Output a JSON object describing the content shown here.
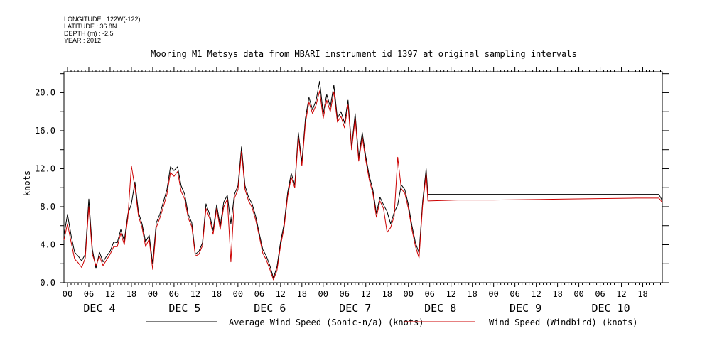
{
  "meta": {
    "longitude": "LONGITUDE : 122W(-122)",
    "latitude": "LATITUDE : 36.8N",
    "depth": "DEPTH (m) : -2.5",
    "year": "YEAR : 2012"
  },
  "chart_data": {
    "type": "line",
    "title": "Mooring M1 Metsys data from MBARI instrument id 1397 at original sampling intervals",
    "ylabel": "knots",
    "xlabel": "",
    "ylim": [
      0,
      20
    ],
    "yticks": [
      0.0,
      4.0,
      8.0,
      12.0,
      16.0,
      20.0
    ],
    "ytick_labels": [
      "0.0",
      "4.0",
      "8.0",
      "12.0",
      "16.0",
      "20.0"
    ],
    "xlim_hours": [
      -1,
      167.5
    ],
    "hour_ticks": [
      "00",
      "06",
      "12",
      "18"
    ],
    "days": [
      "DEC 4",
      "DEC 5",
      "DEC 6",
      "DEC 7",
      "DEC 8",
      "DEC 9",
      "DEC 10"
    ],
    "legend_position": "bottom",
    "grid": false,
    "series": [
      {
        "name": "Average Wind Speed (Sonic-n/a) (knots)",
        "color": "#000000",
        "points": [
          [
            -1,
            5.0
          ],
          [
            0,
            7.2
          ],
          [
            1,
            5.0
          ],
          [
            2,
            3.2
          ],
          [
            3,
            2.8
          ],
          [
            4,
            2.3
          ],
          [
            5,
            3.0
          ],
          [
            6,
            8.8
          ],
          [
            7,
            3.5
          ],
          [
            8,
            1.5
          ],
          [
            9,
            3.2
          ],
          [
            10,
            2.2
          ],
          [
            11,
            2.8
          ],
          [
            12,
            3.3
          ],
          [
            13,
            4.3
          ],
          [
            14,
            4.2
          ],
          [
            15,
            5.6
          ],
          [
            16,
            4.4
          ],
          [
            17,
            7.2
          ],
          [
            18,
            8.3
          ],
          [
            19,
            10.6
          ],
          [
            20,
            7.4
          ],
          [
            21,
            6.2
          ],
          [
            22,
            4.3
          ],
          [
            23,
            5.0
          ],
          [
            24,
            2.0
          ],
          [
            25,
            6.3
          ],
          [
            26,
            7.2
          ],
          [
            27,
            8.5
          ],
          [
            28,
            9.8
          ],
          [
            29,
            12.2
          ],
          [
            30,
            11.8
          ],
          [
            31,
            12.2
          ],
          [
            32,
            10.2
          ],
          [
            33,
            9.3
          ],
          [
            34,
            7.2
          ],
          [
            35,
            6.3
          ],
          [
            36,
            3.0
          ],
          [
            37,
            3.3
          ],
          [
            38,
            4.2
          ],
          [
            39,
            8.3
          ],
          [
            40,
            7.2
          ],
          [
            41,
            5.5
          ],
          [
            42,
            8.2
          ],
          [
            43,
            6.0
          ],
          [
            44,
            8.5
          ],
          [
            45,
            9.2
          ],
          [
            46,
            6.2
          ],
          [
            47,
            9.3
          ],
          [
            48,
            10.2
          ],
          [
            49,
            14.3
          ],
          [
            50,
            10.2
          ],
          [
            51,
            9.0
          ],
          [
            52,
            8.3
          ],
          [
            53,
            7.0
          ],
          [
            54,
            5.2
          ],
          [
            55,
            3.5
          ],
          [
            56,
            2.8
          ],
          [
            57,
            1.8
          ],
          [
            58,
            0.5
          ],
          [
            59,
            1.7
          ],
          [
            60,
            4.3
          ],
          [
            61,
            6.2
          ],
          [
            62,
            9.5
          ],
          [
            63,
            11.5
          ],
          [
            64,
            10.3
          ],
          [
            65,
            15.8
          ],
          [
            66,
            12.7
          ],
          [
            67,
            17.3
          ],
          [
            68,
            19.5
          ],
          [
            69,
            18.2
          ],
          [
            70,
            19.2
          ],
          [
            71,
            21.2
          ],
          [
            72,
            17.8
          ],
          [
            73,
            19.8
          ],
          [
            74,
            18.5
          ],
          [
            75,
            20.8
          ],
          [
            76,
            17.3
          ],
          [
            77,
            18.0
          ],
          [
            78,
            16.8
          ],
          [
            79,
            19.2
          ],
          [
            80,
            14.3
          ],
          [
            81,
            17.8
          ],
          [
            82,
            13.2
          ],
          [
            83,
            15.8
          ],
          [
            84,
            13.3
          ],
          [
            85,
            11.2
          ],
          [
            86,
            9.8
          ],
          [
            87,
            7.3
          ],
          [
            88,
            9.0
          ],
          [
            89,
            8.2
          ],
          [
            90,
            7.5
          ],
          [
            91,
            6.2
          ],
          [
            92,
            7.4
          ],
          [
            93,
            8.2
          ],
          [
            94,
            10.3
          ],
          [
            95,
            9.8
          ],
          [
            96,
            8.2
          ],
          [
            97,
            6.0
          ],
          [
            98,
            4.2
          ],
          [
            99,
            3.1
          ],
          [
            100,
            8.5
          ],
          [
            101,
            12.0
          ],
          [
            101.5,
            9.3
          ],
          [
            110,
            9.3
          ],
          [
            120,
            9.3
          ],
          [
            140,
            9.3
          ],
          [
            160,
            9.3
          ],
          [
            166.5,
            9.3
          ],
          [
            167,
            9.0
          ],
          [
            167.5,
            8.6
          ]
        ]
      },
      {
        "name": "Wind Speed (Windbird) (knots)",
        "color": "#cc0000",
        "points": [
          [
            -1,
            4.5
          ],
          [
            0,
            6.2
          ],
          [
            1,
            4.3
          ],
          [
            2,
            2.5
          ],
          [
            3,
            2.1
          ],
          [
            4,
            1.6
          ],
          [
            5,
            2.6
          ],
          [
            6,
            8.0
          ],
          [
            7,
            3.0
          ],
          [
            8,
            1.8
          ],
          [
            9,
            2.8
          ],
          [
            10,
            1.8
          ],
          [
            11,
            2.4
          ],
          [
            12,
            3.0
          ],
          [
            13,
            3.8
          ],
          [
            14,
            3.8
          ],
          [
            15,
            5.2
          ],
          [
            16,
            4.0
          ],
          [
            17,
            6.8
          ],
          [
            18,
            12.3
          ],
          [
            19,
            10.0
          ],
          [
            20,
            7.0
          ],
          [
            21,
            5.8
          ],
          [
            22,
            3.8
          ],
          [
            23,
            4.6
          ],
          [
            24,
            1.4
          ],
          [
            25,
            5.8
          ],
          [
            26,
            6.8
          ],
          [
            27,
            8.0
          ],
          [
            28,
            9.3
          ],
          [
            29,
            11.6
          ],
          [
            30,
            11.2
          ],
          [
            31,
            11.7
          ],
          [
            32,
            9.6
          ],
          [
            33,
            8.8
          ],
          [
            34,
            6.8
          ],
          [
            35,
            5.9
          ],
          [
            36,
            2.8
          ],
          [
            37,
            3.0
          ],
          [
            38,
            3.9
          ],
          [
            39,
            7.8
          ],
          [
            40,
            6.8
          ],
          [
            41,
            5.1
          ],
          [
            42,
            7.8
          ],
          [
            43,
            5.6
          ],
          [
            44,
            8.0
          ],
          [
            45,
            8.8
          ],
          [
            46,
            2.2
          ],
          [
            47,
            8.9
          ],
          [
            48,
            9.8
          ],
          [
            49,
            13.8
          ],
          [
            50,
            9.8
          ],
          [
            51,
            8.6
          ],
          [
            52,
            7.9
          ],
          [
            53,
            6.6
          ],
          [
            54,
            4.9
          ],
          [
            55,
            3.1
          ],
          [
            56,
            2.4
          ],
          [
            57,
            1.4
          ],
          [
            58,
            0.3
          ],
          [
            59,
            1.3
          ],
          [
            60,
            3.9
          ],
          [
            61,
            5.8
          ],
          [
            62,
            9.1
          ],
          [
            63,
            11.1
          ],
          [
            64,
            10.0
          ],
          [
            65,
            15.3
          ],
          [
            66,
            12.3
          ],
          [
            67,
            16.8
          ],
          [
            68,
            19.0
          ],
          [
            69,
            17.8
          ],
          [
            70,
            18.7
          ],
          [
            71,
            20.2
          ],
          [
            72,
            17.3
          ],
          [
            73,
            19.2
          ],
          [
            74,
            18.0
          ],
          [
            75,
            20.1
          ],
          [
            76,
            16.9
          ],
          [
            77,
            17.5
          ],
          [
            78,
            16.3
          ],
          [
            79,
            18.7
          ],
          [
            80,
            14.0
          ],
          [
            81,
            17.3
          ],
          [
            82,
            12.8
          ],
          [
            83,
            15.3
          ],
          [
            84,
            12.9
          ],
          [
            85,
            10.8
          ],
          [
            86,
            9.4
          ],
          [
            87,
            6.9
          ],
          [
            88,
            8.6
          ],
          [
            89,
            7.8
          ],
          [
            90,
            5.3
          ],
          [
            91,
            5.8
          ],
          [
            92,
            7.0
          ],
          [
            93,
            13.2
          ],
          [
            94,
            9.9
          ],
          [
            95,
            9.4
          ],
          [
            96,
            7.8
          ],
          [
            97,
            5.6
          ],
          [
            98,
            3.8
          ],
          [
            99,
            2.6
          ],
          [
            100,
            8.1
          ],
          [
            101,
            11.5
          ],
          [
            101.5,
            8.6
          ],
          [
            110,
            8.7
          ],
          [
            120,
            8.7
          ],
          [
            140,
            8.8
          ],
          [
            160,
            8.9
          ],
          [
            166.5,
            8.9
          ],
          [
            167,
            8.7
          ],
          [
            167.5,
            8.4
          ]
        ]
      }
    ]
  }
}
